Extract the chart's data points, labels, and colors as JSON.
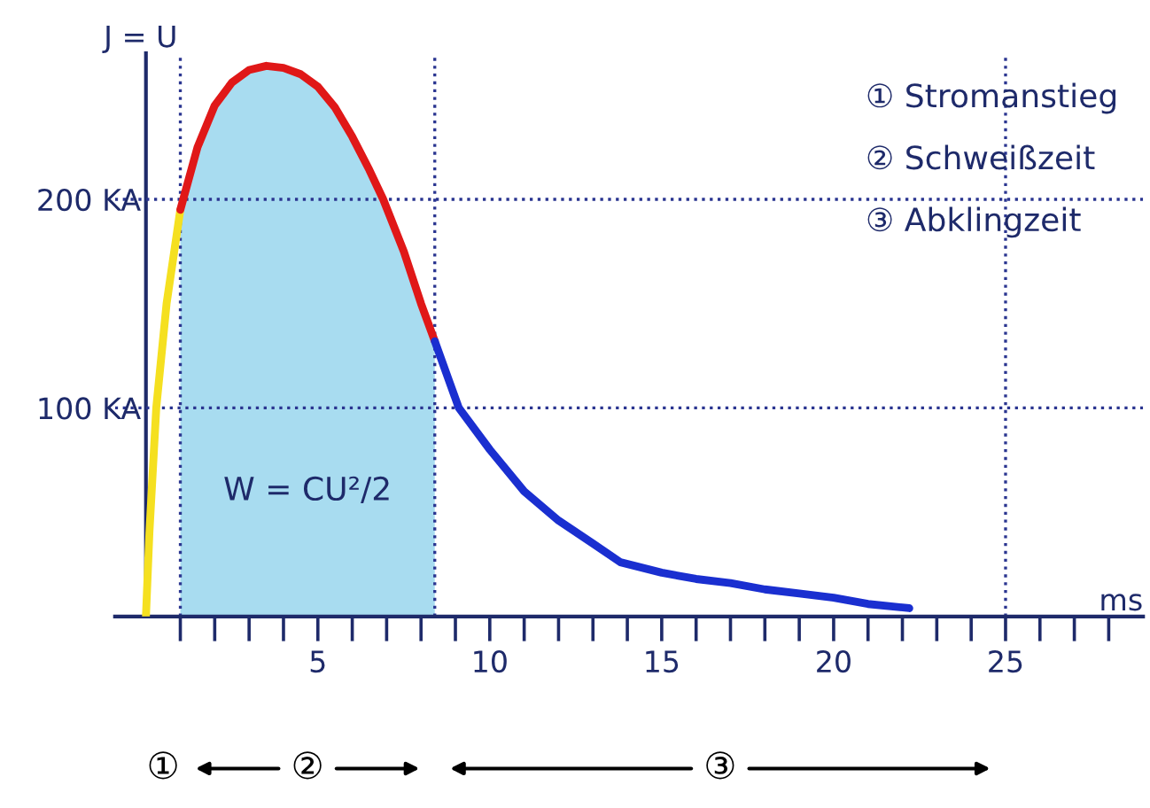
{
  "chart_data": {
    "type": "line",
    "xlabel": "ms",
    "ylabel": "J = U",
    "series": [
      {
        "color": "#f5e020",
        "x": [
          0,
          0.1,
          0.3,
          0.6,
          1.0
        ],
        "values": [
          0,
          40,
          100,
          150,
          195
        ]
      },
      {
        "color": "#e01818",
        "x": [
          1.0,
          1.5,
          2,
          2.5,
          3,
          3.5,
          4,
          4.5,
          5,
          5.5,
          6,
          6.5,
          6.9,
          7.5,
          8.0,
          8.4
        ],
        "values": [
          195,
          225,
          245,
          256,
          262,
          264,
          263,
          260,
          254,
          244,
          230,
          214,
          200,
          175,
          150,
          132
        ]
      },
      {
        "color": "#1a2fd0",
        "x": [
          8.4,
          9.1,
          10,
          11,
          12,
          13,
          13.8,
          15,
          16,
          17,
          18,
          19,
          20,
          21,
          22.2
        ],
        "values": [
          132,
          100,
          80,
          60,
          46,
          35,
          26,
          21,
          18,
          16,
          13,
          11,
          9,
          6,
          4
        ]
      }
    ],
    "xlim": [
      -0.9,
      29
    ],
    "xticks": [
      {
        "value": 1,
        "label": null
      },
      {
        "value": 2,
        "label": null
      },
      {
        "value": 3,
        "label": null
      },
      {
        "value": 4,
        "label": null
      },
      5,
      {
        "value": 6,
        "label": null
      },
      {
        "value": 7,
        "label": null
      },
      {
        "value": 8,
        "label": null
      },
      {
        "value": 9,
        "label": null
      },
      10,
      {
        "value": 11,
        "label": null
      },
      {
        "value": 12,
        "label": null
      },
      {
        "value": 13,
        "label": null
      },
      {
        "value": 14,
        "label": null
      },
      15,
      {
        "value": 16,
        "label": null
      },
      {
        "value": 17,
        "label": null
      },
      {
        "value": 18,
        "label": null
      },
      {
        "value": 19,
        "label": null
      },
      20,
      {
        "value": 21,
        "label": null
      },
      {
        "value": 22,
        "label": null
      },
      {
        "value": 23,
        "label": null
      },
      {
        "value": 24,
        "label": null
      },
      25,
      {
        "value": 26,
        "label": null
      },
      {
        "value": 27,
        "label": null
      },
      {
        "value": 28,
        "label": null
      }
    ],
    "ylim": [
      0,
      270
    ],
    "yticks": [
      {
        "value": 100,
        "label": "100 KA"
      },
      {
        "value": 200,
        "label": "200 KA"
      }
    ],
    "grid": "y",
    "ref_lines": [
      {
        "axis": "x",
        "value": 1.0,
        "color": "#2a3590",
        "line_style": "dotted"
      },
      {
        "axis": "x",
        "value": 8.4,
        "color": "#2a3590",
        "line_style": "dotted"
      },
      {
        "axis": "x",
        "value": 25,
        "color": "#2a3590",
        "line_style": "dotted"
      }
    ],
    "bands": [
      {
        "axis": "x",
        "from": 1.0,
        "to": 8.4,
        "color": "#a8dcf0",
        "label": "W = CU²/2"
      }
    ],
    "annotations": [
      "① Stromanstieg",
      "② Schweißzeit",
      "③ Abklingzeit",
      "①",
      "②",
      "③"
    ]
  }
}
